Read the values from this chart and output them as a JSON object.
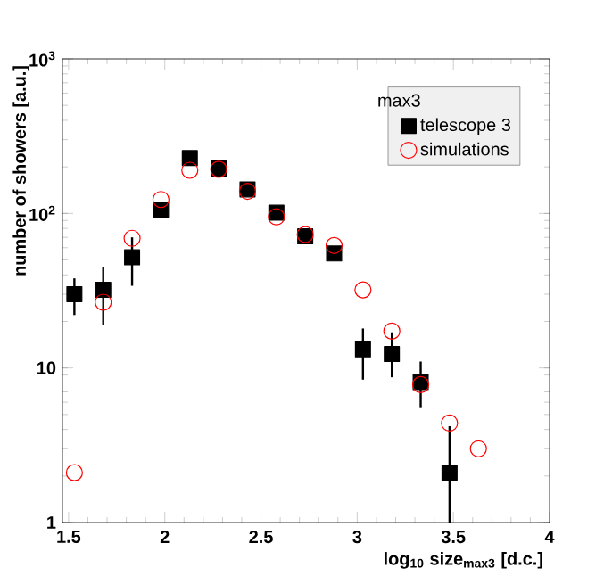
{
  "chart_data": {
    "type": "scatter",
    "xlabel": "log$_{10}$ size$_{max3}$ [d.c.]",
    "ylabel": "number of showers [a.u.]",
    "legend_title": "max3",
    "x": [
      1.53,
      1.68,
      1.83,
      1.98,
      2.13,
      2.28,
      2.43,
      2.58,
      2.73,
      2.88,
      3.03,
      3.18,
      3.33,
      3.48,
      3.63
    ],
    "series": [
      {
        "name": "telescope 3",
        "color": "#000000",
        "marker": "square",
        "values": [
          30,
          32,
          52,
          106,
          228,
          195,
          143,
          101,
          71,
          55,
          13.2,
          12.3,
          8.1,
          2.1,
          null
        ],
        "errors": [
          [
            22,
            38
          ],
          [
            19,
            45
          ],
          [
            34,
            70
          ],
          null,
          null,
          null,
          null,
          null,
          null,
          null,
          [
            8.4,
            18
          ],
          [
            8.7,
            17
          ],
          [
            5.5,
            11
          ],
          [
            1,
            4.2
          ],
          null
        ]
      },
      {
        "name": "simulations",
        "color": "#ff0000",
        "marker": "circle",
        "values": [
          2.1,
          26.6,
          69,
          123,
          190,
          193,
          139,
          95,
          73,
          62,
          32,
          17.3,
          7.8,
          4.4,
          3.0
        ]
      }
    ],
    "log": "y",
    "xlim": [
      1.468,
      4
    ],
    "ylim": [
      1,
      1000
    ],
    "xticks": [
      1.5,
      2,
      2.5,
      3,
      3.5,
      4
    ],
    "yticks": [
      {
        "value": 1,
        "label": "1"
      },
      {
        "value": 10,
        "label": "10"
      },
      {
        "value": 100,
        "label": "10$^{2}$"
      },
      {
        "value": 1000,
        "label": "10$^{3}$"
      }
    ],
    "legend": "top right",
    "grid": false
  }
}
